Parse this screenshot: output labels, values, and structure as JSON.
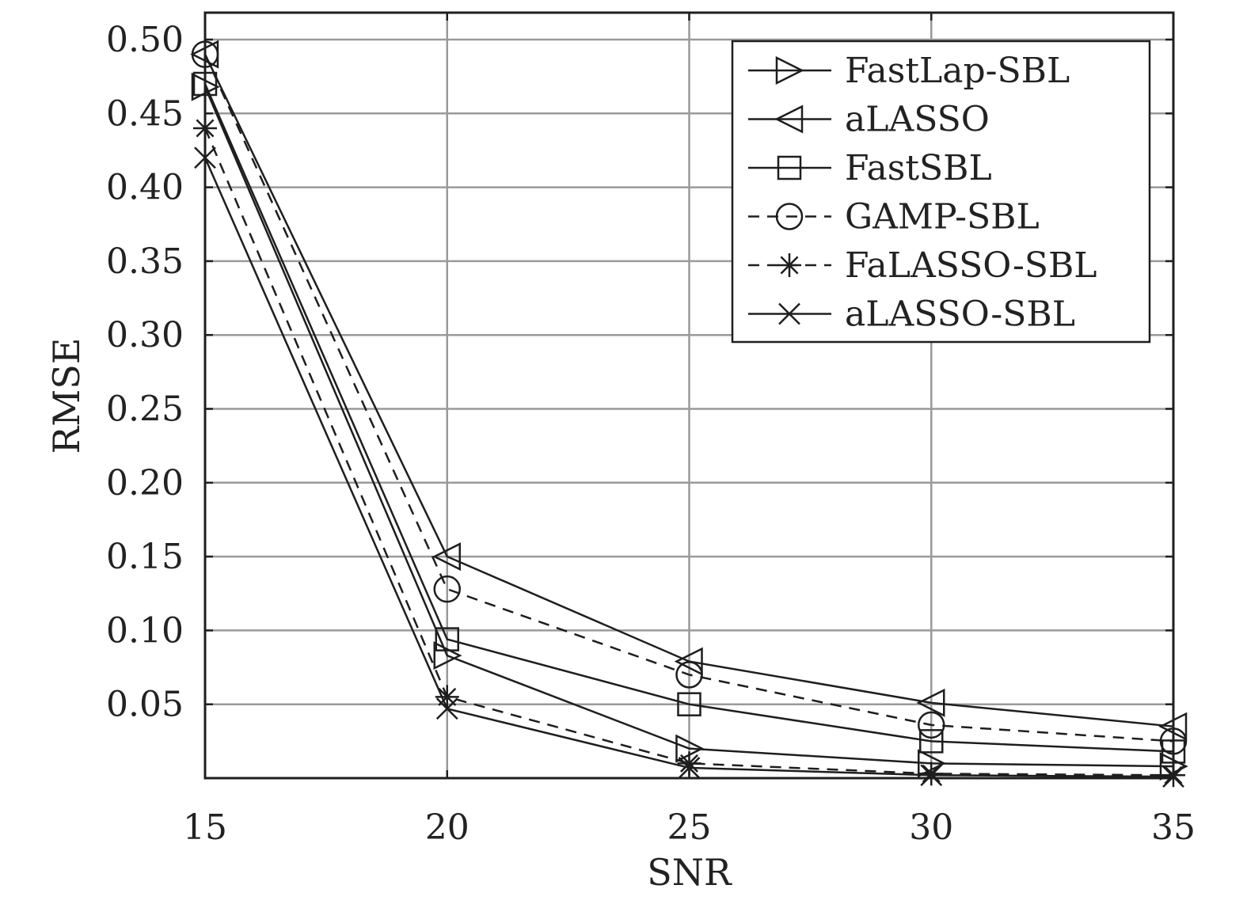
{
  "chart_data": {
    "type": "line",
    "xlabel": "SNR",
    "ylabel": "RMSE",
    "x": [
      15,
      20,
      25,
      30,
      35
    ],
    "xlim": [
      15,
      35
    ],
    "ylim": [
      0,
      0.5
    ],
    "xticks": [
      "15",
      "20",
      "25",
      "30",
      "35"
    ],
    "yticks": [
      "0.05",
      "0.10",
      "0.15",
      "0.20",
      "0.25",
      "0.30",
      "0.35",
      "0.40",
      "0.45",
      "0.50"
    ],
    "ytick_values": [
      0.05,
      0.1,
      0.15,
      0.2,
      0.25,
      0.3,
      0.35,
      0.4,
      0.45,
      0.5
    ],
    "grid": true,
    "legend_position": "top-right",
    "series": [
      {
        "name": "FastLap-SBL",
        "marker": "triangle-right",
        "line": "solid",
        "values": [
          0.468,
          0.083,
          0.02,
          0.01,
          0.008
        ]
      },
      {
        "name": "aLASSO",
        "marker": "triangle-left",
        "line": "solid",
        "values": [
          0.49,
          0.15,
          0.079,
          0.051,
          0.035
        ]
      },
      {
        "name": "FastSBL",
        "marker": "square",
        "line": "solid",
        "values": [
          0.47,
          0.094,
          0.05,
          0.025,
          0.018
        ]
      },
      {
        "name": "GAMP-SBL",
        "marker": "circle",
        "line": "dashed",
        "values": [
          0.49,
          0.128,
          0.07,
          0.036,
          0.025
        ]
      },
      {
        "name": "FaLASSO-SBL",
        "marker": "asterisk",
        "line": "dashed",
        "values": [
          0.44,
          0.055,
          0.01,
          0.003,
          0.002
        ]
      },
      {
        "name": "aLASSO-SBL",
        "marker": "x",
        "line": "solid",
        "values": [
          0.42,
          0.047,
          0.007,
          0.002,
          0.001
        ]
      }
    ]
  }
}
